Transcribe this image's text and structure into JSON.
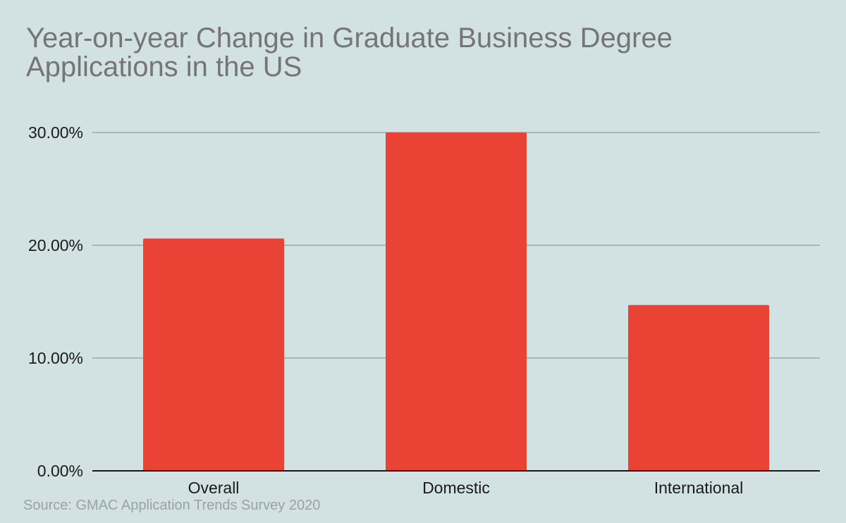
{
  "chart_data": {
    "type": "bar",
    "title": "Year-on-year Change in Graduate Business Degree Applications in the US",
    "categories": [
      "Overall",
      "Domestic",
      "International"
    ],
    "values": [
      20.6,
      30.0,
      14.7
    ],
    "ylim": [
      0,
      30
    ],
    "yticks": [
      0,
      10,
      20,
      30
    ],
    "ytick_labels": [
      "0.00%",
      "10.00%",
      "20.00%",
      "30.00%"
    ],
    "xlabel": "",
    "ylabel": "",
    "grid": true,
    "legend": "none",
    "bar_color": "#ea4335",
    "source": "Source: GMAC Application Trends Survey 2020"
  }
}
